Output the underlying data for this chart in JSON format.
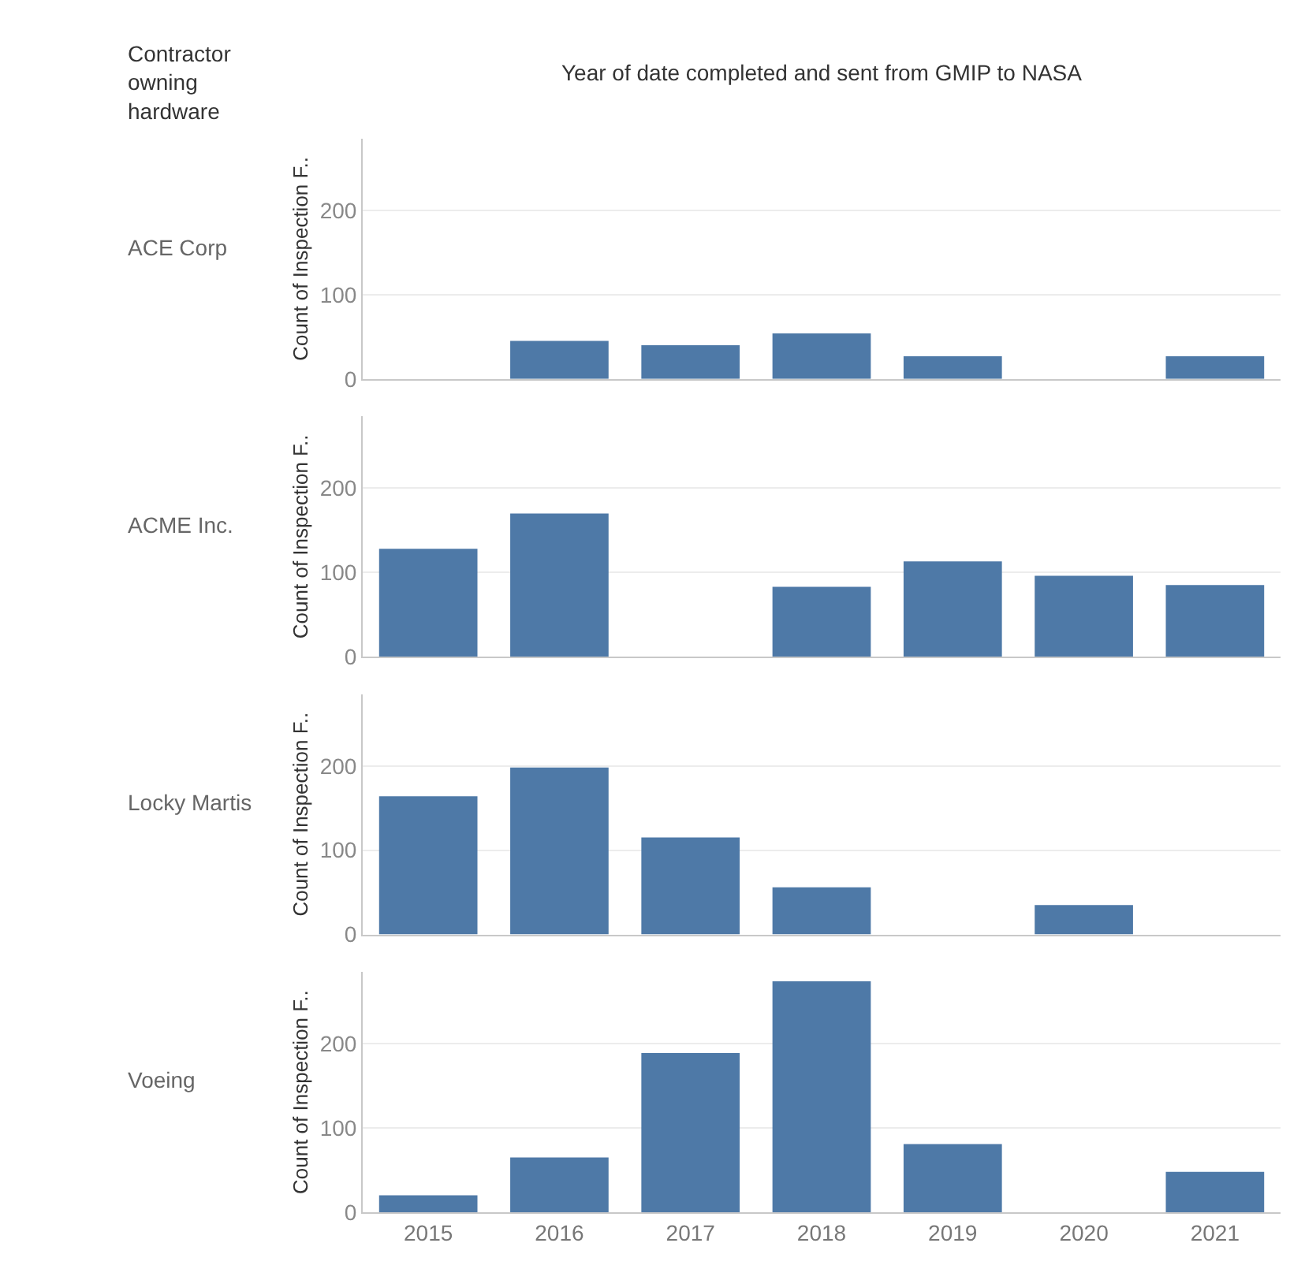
{
  "chart_data": [
    {
      "type": "bar",
      "title": "ACE Corp",
      "xlabel": "Year of date completed and sent from GMIP to NASA",
      "ylabel": "Count of Inspection F..",
      "annotations": [
        "Contractor owning hardware"
      ],
      "categories": [
        "2015",
        "2016",
        "2017",
        "2018",
        "2019",
        "2020",
        "2021"
      ],
      "values": [
        null,
        45,
        40,
        54,
        27,
        null,
        27
      ],
      "color": "#4e79a7",
      "ylim": [
        0,
        285
      ],
      "yticks": [
        0,
        100,
        200
      ],
      "grid": "y",
      "tick_labels": "y"
    },
    {
      "type": "bar",
      "title": "ACME Inc.",
      "ylabel": "Count of Inspection F..",
      "categories": [
        "2015",
        "2016",
        "2017",
        "2018",
        "2019",
        "2020",
        "2021"
      ],
      "values": [
        128,
        170,
        null,
        83,
        113,
        96,
        85
      ],
      "color": "#4e79a7",
      "ylim": [
        0,
        285
      ],
      "yticks": [
        0,
        100,
        200
      ],
      "grid": "y",
      "tick_labels": "y"
    },
    {
      "type": "bar",
      "title": "Locky Martis",
      "ylabel": "Count of Inspection F..",
      "categories": [
        "2015",
        "2016",
        "2017",
        "2018",
        "2019",
        "2020",
        "2021"
      ],
      "values": [
        164,
        198,
        115,
        56,
        null,
        35,
        null
      ],
      "color": "#4e79a7",
      "ylim": [
        0,
        285
      ],
      "yticks": [
        0,
        100,
        200
      ],
      "grid": "y",
      "tick_labels": "y"
    },
    {
      "type": "bar",
      "title": "Voeing",
      "ylabel": "Count of Inspection F..",
      "categories": [
        "2015",
        "2016",
        "2017",
        "2018",
        "2019",
        "2020",
        "2021"
      ],
      "values": [
        20,
        65,
        189,
        274,
        81,
        null,
        48
      ],
      "color": "#4e79a7",
      "ylim": [
        0,
        285
      ],
      "yticks": [
        0,
        100,
        200
      ],
      "grid": "y"
    }
  ]
}
